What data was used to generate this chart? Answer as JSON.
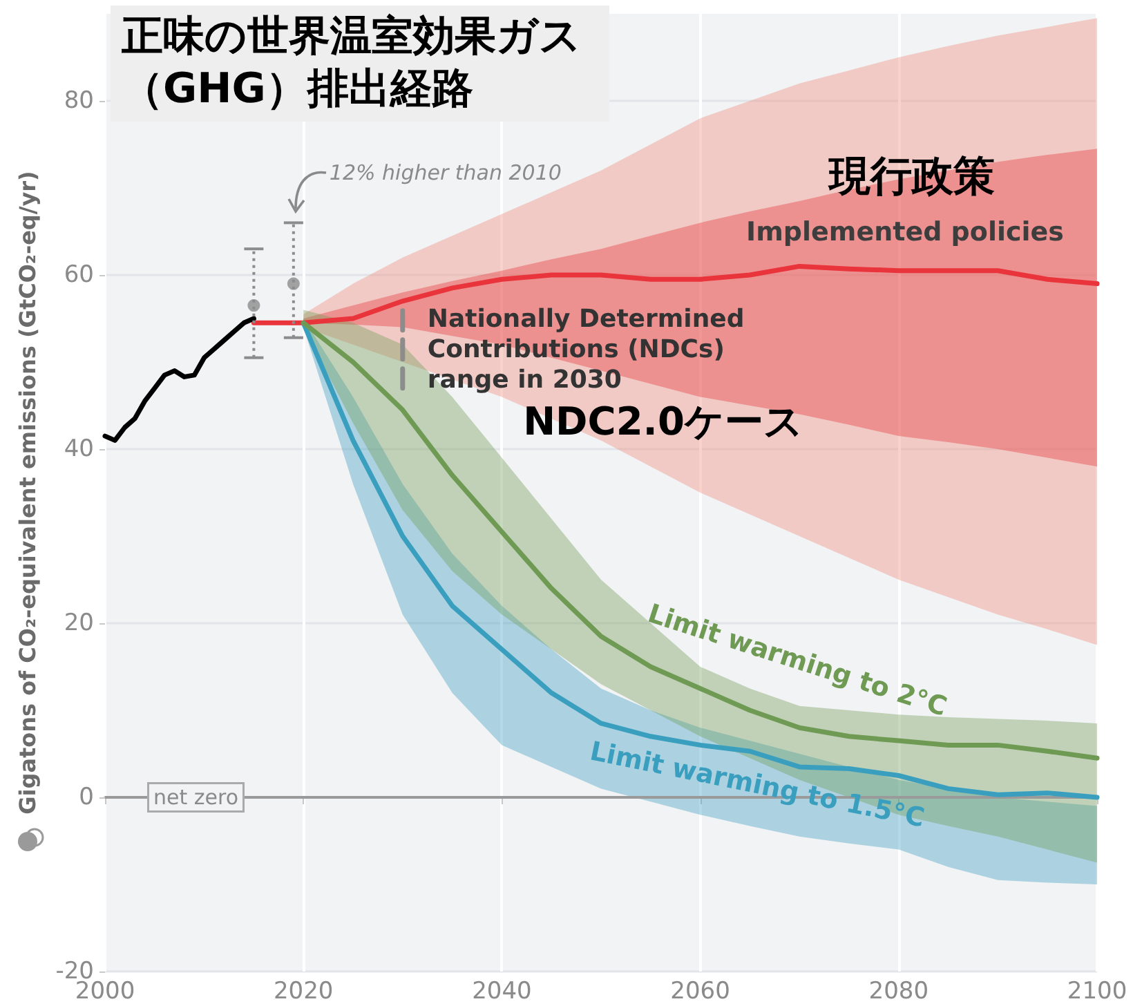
{
  "chart_data": {
    "type": "line",
    "title": "正味の世界温室効果ガス（GHG）排出経路",
    "ylabel": "Gigatons of CO₂-equivalent emissions (GtCO₂-eq/yr)",
    "xlim": [
      2000,
      2100
    ],
    "xticks": [
      2000,
      2020,
      2040,
      2060,
      2080,
      2100
    ],
    "ylim": [
      -20,
      90
    ],
    "yticks": [
      -20,
      0,
      20,
      40,
      60,
      80
    ],
    "grid": true,
    "legend": false,
    "marker": "none",
    "line_style": "solid",
    "ref_lines": [
      {
        "axis": "y",
        "value": 0,
        "label": "net zero",
        "color": "#9a9a9a"
      }
    ],
    "annotations": [
      {
        "text": "12% higher than 2010",
        "x": 2019,
        "y": 66
      },
      {
        "text": "Nationally Determined Contributions (NDCs) range in 2030",
        "x": 2030,
        "y": 57
      },
      "現行政策",
      "NDC2.0ケース"
    ],
    "series": [
      {
        "color": "#ee8a7a",
        "x": [
          2020,
          2025,
          2030,
          2035,
          2040,
          2045,
          2050,
          2055,
          2060,
          2065,
          2070,
          2075,
          2080,
          2085,
          2090,
          2095,
          2100
        ],
        "values": [
          null,
          null,
          null,
          null,
          null,
          null,
          null,
          null,
          null,
          null,
          null,
          null,
          null,
          null,
          null,
          null,
          null
        ],
        "lower": [
          54,
          52,
          50,
          48,
          46,
          43.5,
          41,
          38,
          35,
          32.5,
          30,
          27.5,
          25,
          23,
          21,
          19.3,
          17.5
        ],
        "upper": [
          55.5,
          59,
          62,
          64.5,
          67,
          69.5,
          72,
          75,
          78,
          80,
          82,
          83.5,
          85,
          86.3,
          87.5,
          88.5,
          89.5
        ]
      },
      {
        "name": "Implemented policies",
        "color": "#e8343a",
        "x": [
          2015,
          2020,
          2025,
          2030,
          2035,
          2040,
          2045,
          2050,
          2055,
          2060,
          2065,
          2070,
          2075,
          2080,
          2085,
          2090,
          2095,
          2100
        ],
        "values": [
          54.5,
          54.5,
          55,
          57,
          58.5,
          59.5,
          60,
          60,
          59.5,
          59.5,
          60,
          61,
          60.7,
          60.5,
          60.5,
          60.5,
          59.5,
          59
        ],
        "lower": [
          null,
          54.5,
          54.3,
          54,
          53,
          52,
          50.5,
          49,
          47.5,
          46,
          45,
          44,
          42.8,
          41.5,
          40.8,
          40,
          39,
          38
        ],
        "upper": [
          null,
          55,
          56.5,
          58,
          59.3,
          60.5,
          61.8,
          63,
          64.5,
          66,
          67.3,
          68.5,
          69.8,
          71,
          72,
          73,
          73.8,
          74.5
        ]
      },
      {
        "name": "Limit warming to 1.5°C",
        "color": "#3a9fbf",
        "x": [
          2020,
          2025,
          2030,
          2035,
          2040,
          2045,
          2050,
          2055,
          2060,
          2065,
          2070,
          2075,
          2080,
          2085,
          2090,
          2095,
          2100
        ],
        "values": [
          54.5,
          41,
          30,
          22,
          17,
          12,
          8.5,
          7,
          6,
          5.3,
          3.5,
          3.3,
          2.5,
          1,
          0.3,
          0.5,
          0
        ],
        "lower": [
          54,
          36,
          21,
          12,
          6,
          3.5,
          1,
          -0.5,
          -2,
          -3.3,
          -4.5,
          -5.3,
          -6,
          -8,
          -9.5,
          -9.8,
          -10
        ],
        "upper": [
          55,
          46,
          36,
          28,
          22,
          17,
          12.5,
          10,
          8,
          6.5,
          5,
          3.5,
          2,
          1,
          0,
          -0.5,
          -1
        ]
      },
      {
        "name": "Limit warming to 2°C",
        "color": "#6f9a53",
        "x": [
          2020,
          2025,
          2030,
          2035,
          2040,
          2045,
          2050,
          2055,
          2060,
          2065,
          2070,
          2075,
          2080,
          2085,
          2090,
          2095,
          2100
        ],
        "values": [
          54.5,
          50,
          44.5,
          37,
          30.5,
          24,
          18.5,
          15,
          12.5,
          10,
          8,
          7,
          6.5,
          6,
          6,
          5.3,
          4.5
        ],
        "lower": [
          54,
          43,
          33,
          26,
          21,
          17,
          13,
          10,
          7,
          4.5,
          2,
          0,
          -2,
          -3.3,
          -4.5,
          -6,
          -7.5
        ],
        "upper": [
          56,
          54.5,
          52,
          46,
          39,
          32,
          25,
          20,
          15,
          12.5,
          10.5,
          10,
          9.5,
          9.2,
          9,
          8.8,
          8.5
        ]
      },
      {
        "color": "#000000",
        "x": [
          2000,
          2001,
          2002,
          2003,
          2004,
          2005,
          2006,
          2007,
          2008,
          2009,
          2010,
          2011,
          2012,
          2013,
          2014,
          2015
        ],
        "values": [
          41.5,
          41,
          42.5,
          43.5,
          45.5,
          47,
          48.5,
          49,
          48.3,
          48.5,
          50.5,
          51.5,
          52.5,
          53.5,
          54.5,
          55
        ]
      },
      {
        "color": "#8c8c8c",
        "line_style": "dashed",
        "x": [
          2030,
          2030
        ],
        "values": [
          47,
          57
        ]
      },
      {
        "type": "scatter",
        "color": "#8c8c8c",
        "marker": "circle",
        "x": [
          2015,
          2019
        ],
        "values": [
          56.5,
          59
        ],
        "errors": [
          [
            50.5,
            63
          ],
          [
            52.8,
            66
          ]
        ]
      }
    ]
  }
}
